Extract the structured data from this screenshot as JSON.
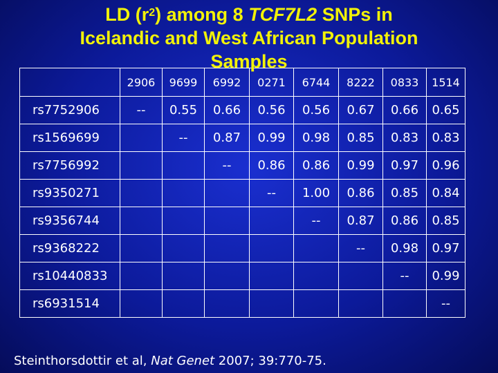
{
  "title": {
    "line1_prefix": "LD (r",
    "line1_sup": "2",
    "line1_mid": ") among 8 ",
    "line1_gene": "TCF7L2",
    "line1_suffix": " SNPs in",
    "line2": "Icelandic and West African Population",
    "line3": "Samples"
  },
  "table": {
    "columns": [
      "2906",
      "9699",
      "6992",
      "0271",
      "6744",
      "8222",
      "0833",
      "1514"
    ],
    "rows": [
      {
        "label": "rs7752906",
        "cells": [
          "--",
          "0.55",
          "0.66",
          "0.56",
          "0.56",
          "0.67",
          "0.66",
          "0.65"
        ]
      },
      {
        "label": "rs1569699",
        "cells": [
          "",
          "--",
          "0.87",
          "0.99",
          "0.98",
          "0.85",
          "0.83",
          "0.83"
        ]
      },
      {
        "label": "rs7756992",
        "cells": [
          "",
          "",
          "--",
          "0.86",
          "0.86",
          "0.99",
          "0.97",
          "0.96"
        ]
      },
      {
        "label": "rs9350271",
        "cells": [
          "",
          "",
          "",
          "--",
          "1.00",
          "0.86",
          "0.85",
          "0.84"
        ]
      },
      {
        "label": "rs9356744",
        "cells": [
          "",
          "",
          "",
          "",
          "--",
          "0.87",
          "0.86",
          "0.85"
        ]
      },
      {
        "label": "rs9368222",
        "cells": [
          "",
          "",
          "",
          "",
          "",
          "--",
          "0.98",
          "0.97"
        ]
      },
      {
        "label": "rs10440833",
        "cells": [
          "",
          "",
          "",
          "",
          "",
          "",
          "--",
          "0.99"
        ]
      },
      {
        "label": "rs6931514",
        "cells": [
          "",
          "",
          "",
          "",
          "",
          "",
          "",
          "--"
        ]
      }
    ]
  },
  "citation": {
    "prefix": "Steinthorsdottir et al, ",
    "journal": "Nat Genet",
    "suffix": " 2007; 39:770-75."
  },
  "colors": {
    "title": "#f2f208",
    "background": "#0c1a9a",
    "text": "#ffffff"
  }
}
